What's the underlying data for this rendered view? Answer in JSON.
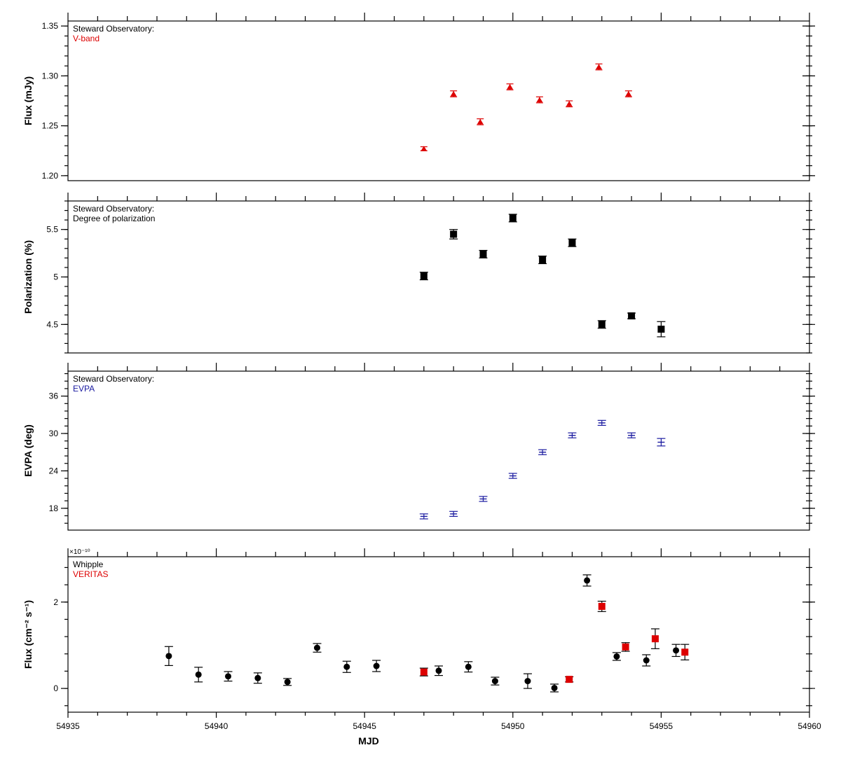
{
  "colors": {
    "red": "#dd0000",
    "blue": "#1a1aa0",
    "black": "#000000"
  },
  "chart_data": [
    {
      "type": "scatter",
      "marker": "triangle",
      "legend": {
        "line1": "Steward Observatory:",
        "line2": "V-band",
        "line2_color": "#dd0000"
      },
      "ylabel": "Flux (mJy)",
      "xlabel": "",
      "xlim": [
        54935,
        54960
      ],
      "ylim": [
        1.195,
        1.355
      ],
      "yticks": [
        1.2,
        1.25,
        1.3,
        1.35
      ],
      "yticklabels": [
        "1.20",
        "1.25",
        "1.30",
        "1.35"
      ],
      "series": [
        {
          "color": "#dd0000",
          "marker": "triangle",
          "x": [
            54947.0,
            54948.0,
            54948.9,
            54949.9,
            54950.9,
            54951.9,
            54952.9,
            54953.9
          ],
          "y": [
            1.227,
            1.282,
            1.254,
            1.289,
            1.276,
            1.272,
            1.309,
            1.282
          ],
          "err": [
            0.002,
            0.003,
            0.003,
            0.003,
            0.003,
            0.003,
            0.003,
            0.003
          ]
        }
      ]
    },
    {
      "type": "scatter",
      "marker": "square",
      "legend": {
        "line1": "Steward Observatory:",
        "line2": "Degree of polarization",
        "line2_color": "#000000"
      },
      "ylabel": "Polarization (%)",
      "xlabel": "",
      "xlim": [
        54935,
        54960
      ],
      "ylim": [
        4.2,
        5.8
      ],
      "yticks": [
        4.5,
        5,
        5.5
      ],
      "yticklabels": [
        "4.5",
        "5",
        "5.5"
      ],
      "series": [
        {
          "color": "#000000",
          "marker": "square",
          "x": [
            54947.0,
            54948.0,
            54949.0,
            54950.0,
            54951.0,
            54952.0,
            54953.0,
            54954.0,
            54955.0
          ],
          "y": [
            5.01,
            5.45,
            5.24,
            5.62,
            5.18,
            5.36,
            4.5,
            4.59,
            4.45
          ],
          "err": [
            0.04,
            0.05,
            0.04,
            0.04,
            0.04,
            0.04,
            0.04,
            0.03,
            0.08
          ]
        }
      ]
    },
    {
      "type": "scatter",
      "marker": "cross",
      "legend": {
        "line1": "Steward Observatory:",
        "line2": "EVPA",
        "line2_color": "#1a1aa0"
      },
      "ylabel": "EVPA (deg)",
      "xlabel": "",
      "xlim": [
        54935,
        54960
      ],
      "ylim": [
        14.5,
        40
      ],
      "yticks": [
        18,
        24,
        30,
        36
      ],
      "yticklabels": [
        "18",
        "24",
        "30",
        "36"
      ],
      "series": [
        {
          "color": "#1a1aa0",
          "marker": "cross",
          "x": [
            54947.0,
            54948.0,
            54949.0,
            54950.0,
            54951.0,
            54952.0,
            54953.0,
            54954.0,
            54955.0
          ],
          "y": [
            16.7,
            17.1,
            19.5,
            23.2,
            27.0,
            29.7,
            31.7,
            29.7,
            28.6
          ],
          "err": [
            0.4,
            0.4,
            0.4,
            0.4,
            0.4,
            0.4,
            0.4,
            0.4,
            0.6
          ]
        }
      ]
    },
    {
      "type": "scatter",
      "marker": "circle",
      "legend": {
        "line1": "Whipple",
        "line2": "VERITAS",
        "line2_color": "#dd0000"
      },
      "ylabel": "Flux (cm⁻² s⁻¹)",
      "xlabel": "MJD",
      "scale_label": "×10⁻¹⁰",
      "xlim": [
        54935,
        54960
      ],
      "ylim": [
        -0.55,
        3.05
      ],
      "yticks": [
        0,
        2
      ],
      "yticklabels": [
        "0",
        "2"
      ],
      "xticks": [
        54935,
        54940,
        54945,
        54950,
        54955,
        54960
      ],
      "xticklabels": [
        "54935",
        "54940",
        "54945",
        "54950",
        "54955",
        "54960"
      ],
      "series": [
        {
          "name": "Whipple",
          "color": "#000000",
          "marker": "circle",
          "x": [
            54938.4,
            54939.4,
            54940.4,
            54941.4,
            54942.4,
            54943.4,
            54944.4,
            54945.4,
            54947.5,
            54948.5,
            54949.4,
            54950.5,
            54951.4,
            54952.5,
            54953.5,
            54954.5,
            54955.5
          ],
          "y": [
            0.75,
            0.32,
            0.28,
            0.24,
            0.15,
            0.94,
            0.5,
            0.52,
            0.41,
            0.5,
            0.17,
            0.17,
            0.01,
            2.5,
            0.74,
            0.65,
            0.88
          ],
          "err": [
            0.22,
            0.17,
            0.11,
            0.12,
            0.08,
            0.1,
            0.13,
            0.13,
            0.11,
            0.12,
            0.09,
            0.17,
            0.09,
            0.13,
            0.09,
            0.13,
            0.14
          ]
        },
        {
          "name": "VERITAS",
          "color": "#dd0000",
          "marker": "square",
          "x": [
            54947.0,
            54951.9,
            54953.0,
            54953.8,
            54954.8,
            54955.8
          ],
          "y": [
            0.38,
            0.21,
            1.9,
            0.96,
            1.15,
            0.84
          ],
          "err": [
            0.09,
            0.06,
            0.12,
            0.1,
            0.23,
            0.18
          ]
        }
      ]
    }
  ]
}
